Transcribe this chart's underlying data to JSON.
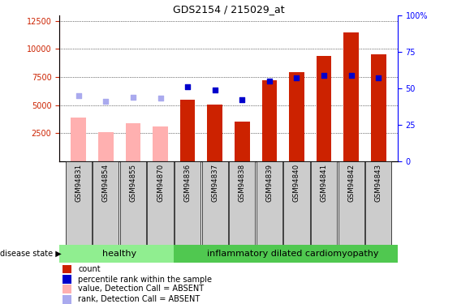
{
  "title": "GDS2154 / 215029_at",
  "samples": [
    "GSM94831",
    "GSM94854",
    "GSM94855",
    "GSM94870",
    "GSM94836",
    "GSM94837",
    "GSM94838",
    "GSM94839",
    "GSM94840",
    "GSM94841",
    "GSM94842",
    "GSM94843"
  ],
  "count_present": [
    null,
    null,
    null,
    null,
    5500,
    5050,
    3550,
    7200,
    7900,
    9400,
    11500,
    9500
  ],
  "count_absent": [
    3900,
    2600,
    3400,
    3100,
    null,
    null,
    null,
    null,
    null,
    null,
    null,
    null
  ],
  "rank_present": [
    null,
    null,
    null,
    null,
    51,
    49,
    42,
    null,
    null,
    null,
    null,
    null
  ],
  "rank_absent": [
    null,
    null,
    null,
    null,
    null,
    null,
    null,
    null,
    null,
    null,
    null,
    null
  ],
  "rank_present2": [
    null,
    null,
    null,
    null,
    null,
    null,
    null,
    55,
    57,
    59,
    59,
    57
  ],
  "rank_absent_val": [
    45,
    41,
    44,
    43,
    null,
    null,
    null,
    null,
    null,
    null,
    null,
    null
  ],
  "ylim_left": [
    0,
    13000
  ],
  "ylim_right": [
    0,
    100
  ],
  "yticks_left": [
    2500,
    5000,
    7500,
    10000,
    12500
  ],
  "yticks_right": [
    0,
    25,
    50,
    75,
    100
  ],
  "healthy_label": "healthy",
  "disease_label": "inflammatory dilated cardiomyopathy",
  "bar_color_present": "#CC2200",
  "bar_color_absent": "#FFB0B0",
  "rank_color_present": "#0000CC",
  "rank_color_absent": "#AAAAEE",
  "legend_items": [
    "count",
    "percentile rank within the sample",
    "value, Detection Call = ABSENT",
    "rank, Detection Call = ABSENT"
  ]
}
